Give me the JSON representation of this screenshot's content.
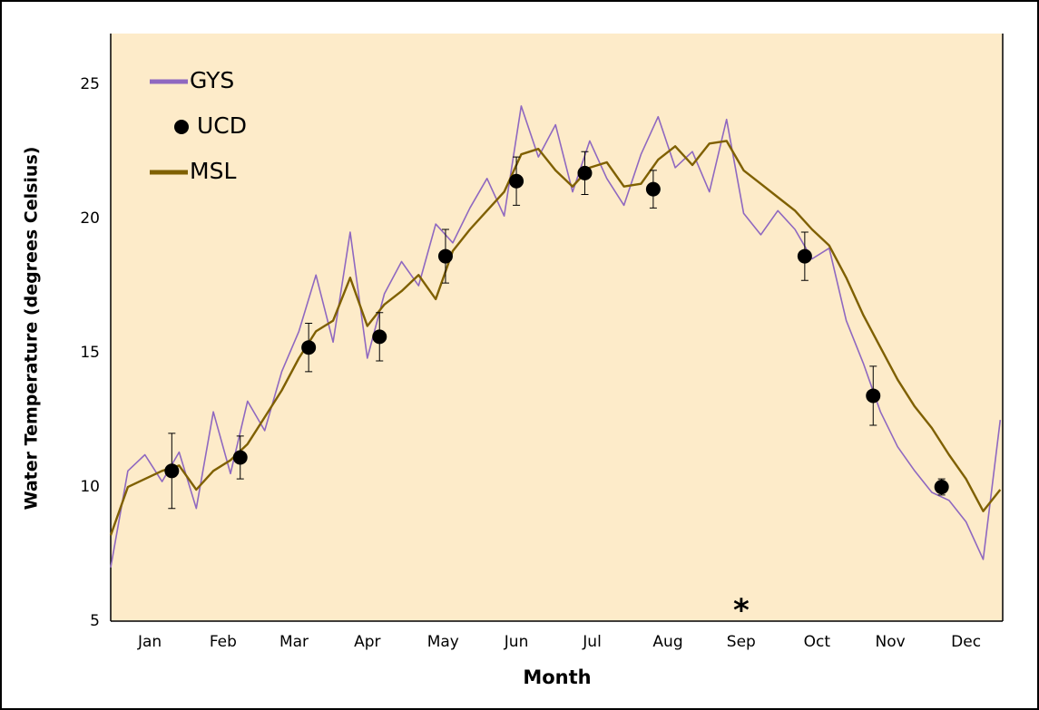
{
  "chart_data": {
    "type": "line",
    "xlabel": "Month",
    "ylabel": "Water Temperature (degrees Celsius)",
    "annotation": "*",
    "xlim": [
      0,
      365
    ],
    "xticks": [
      {
        "value": 16,
        "label": "Jan"
      },
      {
        "value": 46,
        "label": "Feb"
      },
      {
        "value": 75,
        "label": "Mar"
      },
      {
        "value": 105,
        "label": "Apr"
      },
      {
        "value": 136,
        "label": "May"
      },
      {
        "value": 166,
        "label": "Jun"
      },
      {
        "value": 197,
        "label": "Jul"
      },
      {
        "value": 228,
        "label": "Aug"
      },
      {
        "value": 258,
        "label": "Sep"
      },
      {
        "value": 289,
        "label": "Oct"
      },
      {
        "value": 319,
        "label": "Nov"
      },
      {
        "value": 350,
        "label": "Dec"
      }
    ],
    "ylim": [
      5,
      26.9
    ],
    "yticks": [
      5,
      10,
      15,
      20,
      25
    ],
    "grid": false,
    "legend": "top-left",
    "background": "#fdebc9",
    "x": [
      0,
      7,
      14,
      21,
      28,
      35,
      42,
      49,
      56,
      63,
      70,
      77,
      84,
      91,
      98,
      105,
      112,
      119,
      126,
      133,
      140,
      147,
      154,
      161,
      168,
      175,
      182,
      189,
      196,
      203,
      210,
      217,
      224,
      231,
      238,
      245,
      252,
      259,
      266,
      273,
      280,
      287,
      294,
      301,
      308,
      315,
      322,
      329,
      336,
      343,
      350,
      357,
      364
    ],
    "series": [
      {
        "name": "GYS",
        "color": "#8f68c0",
        "kind": "line",
        "values": [
          7.0,
          10.6,
          11.2,
          10.2,
          11.3,
          9.2,
          12.8,
          10.5,
          13.2,
          12.1,
          14.3,
          15.8,
          17.9,
          15.4,
          19.5,
          14.8,
          17.2,
          18.4,
          17.5,
          19.8,
          19.1,
          20.4,
          21.5,
          20.1,
          24.2,
          22.3,
          23.5,
          21.0,
          22.9,
          21.5,
          20.5,
          22.4,
          23.8,
          21.9,
          22.5,
          21.0,
          23.7,
          20.2,
          19.4,
          20.3,
          19.6,
          18.5,
          18.9,
          16.2,
          14.6,
          12.8,
          11.5,
          10.6,
          9.8,
          9.5,
          8.7,
          7.3,
          12.5
        ]
      },
      {
        "name": "UCD",
        "color": "#000000",
        "kind": "points",
        "x": [
          25,
          53,
          81,
          110,
          137,
          166,
          194,
          222,
          284,
          312,
          340
        ],
        "values": [
          10.6,
          11.1,
          15.2,
          15.6,
          18.6,
          21.4,
          21.7,
          21.1,
          18.6,
          13.4,
          10.0
        ],
        "errors": [
          1.4,
          0.8,
          0.9,
          0.9,
          1.0,
          0.9,
          0.8,
          0.7,
          0.9,
          1.1,
          0.3
        ]
      },
      {
        "name": "MSL",
        "color": "#7f6000",
        "kind": "line",
        "values": [
          8.2,
          10.0,
          10.3,
          10.6,
          10.8,
          9.9,
          10.6,
          11.0,
          11.6,
          12.6,
          13.6,
          14.8,
          15.8,
          16.2,
          17.8,
          16.0,
          16.8,
          17.3,
          17.9,
          17.0,
          18.8,
          19.6,
          20.3,
          21.0,
          22.4,
          22.6,
          21.8,
          21.2,
          21.9,
          22.1,
          21.2,
          21.3,
          22.2,
          22.7,
          22.0,
          22.8,
          22.9,
          21.8,
          21.3,
          20.8,
          20.3,
          19.6,
          19.0,
          17.8,
          16.4,
          15.2,
          14.0,
          13.0,
          12.2,
          11.2,
          10.3,
          9.1,
          9.9
        ]
      }
    ]
  }
}
